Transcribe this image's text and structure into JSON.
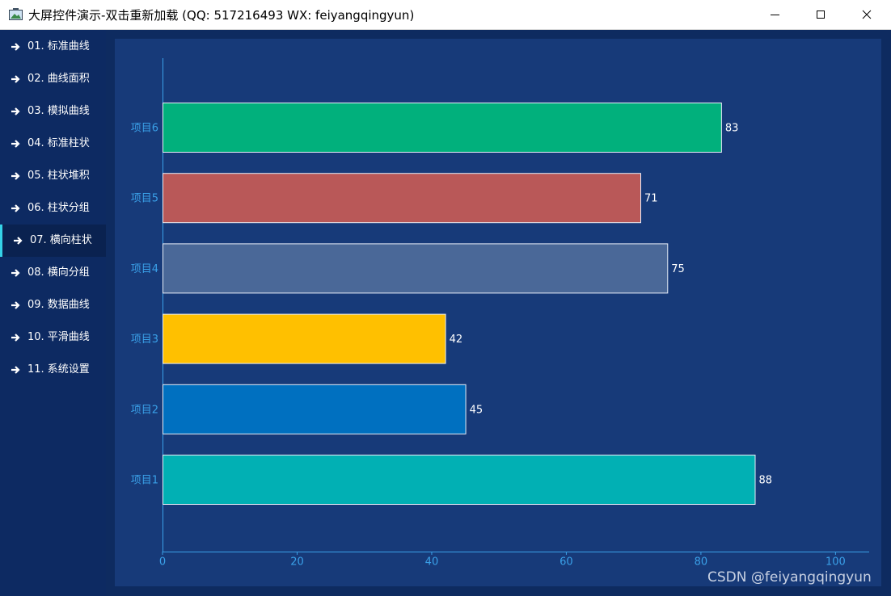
{
  "window": {
    "title": "大屏控件演示-双击重新加载 (QQ: 517216493  WX: feiyangqingyun)"
  },
  "menu": {
    "items": [
      "01. 标准曲线",
      "02. 曲线面积",
      "03. 模拟曲线",
      "04. 标准柱状",
      "05. 柱状堆积",
      "06. 柱状分组",
      "07. 横向柱状",
      "08. 横向分组",
      "09. 数据曲线",
      "10. 平滑曲线",
      "11. 系统设置"
    ],
    "active": 6
  },
  "chart_data": {
    "type": "hbar",
    "categories": [
      "项目1",
      "项目2",
      "项目3",
      "项目4",
      "项目5",
      "项目6"
    ],
    "values": [
      88,
      45,
      42,
      75,
      71,
      83
    ],
    "colors": [
      "#01b0b4",
      "#0070c0",
      "#ffc000",
      "#4a6898",
      "#b95858",
      "#01b07c"
    ],
    "xlim": [
      0,
      105
    ],
    "xticks": [
      0,
      20,
      40,
      60,
      80,
      100
    ]
  },
  "watermark": "CSDN @feiyangqingyun"
}
